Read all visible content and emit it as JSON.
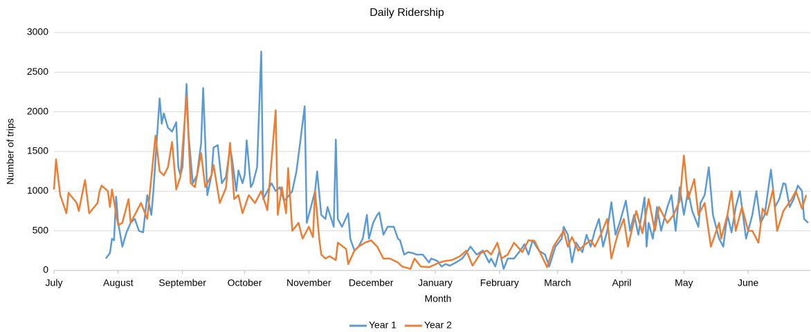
{
  "chart_data": {
    "type": "line",
    "title": "Daily Ridership",
    "x_label": "Month",
    "y_label": "Number of trips",
    "xlim": [
      0,
      365
    ],
    "xticks": [
      {
        "value": 0,
        "label": "July"
      },
      {
        "value": 31,
        "label": "August"
      },
      {
        "value": 62,
        "label": "September"
      },
      {
        "value": 92,
        "label": "October"
      },
      {
        "value": 123,
        "label": "November"
      },
      {
        "value": 153,
        "label": "December"
      },
      {
        "value": 184,
        "label": "January"
      },
      {
        "value": 215,
        "label": "February"
      },
      {
        "value": 243,
        "label": "March"
      },
      {
        "value": 274,
        "label": "April"
      },
      {
        "value": 304,
        "label": "May"
      },
      {
        "value": 335,
        "label": "June"
      }
    ],
    "ylim": [
      0,
      3000
    ],
    "yticks": [
      0,
      500,
      1000,
      1500,
      2000,
      2500,
      3000
    ],
    "grid": true,
    "legend": "bottom",
    "series": [
      {
        "name": "Year 1",
        "color": "#5b9bd5",
        "x": [
          25,
          27,
          28,
          29,
          30,
          31,
          33,
          35,
          37,
          39,
          41,
          43,
          45,
          47,
          48,
          49,
          51,
          52,
          53,
          55,
          57,
          59,
          60,
          61,
          62,
          64,
          65,
          67,
          69,
          71,
          72,
          74,
          76,
          77,
          79,
          81,
          83,
          85,
          86,
          88,
          89,
          91,
          92,
          93,
          95,
          96,
          98,
          100,
          101,
          103,
          105,
          107,
          109,
          111,
          112,
          115,
          117,
          119,
          121,
          122,
          124,
          126,
          127,
          129,
          131,
          132,
          135,
          136,
          137,
          139,
          142,
          143,
          145,
          147,
          149,
          151,
          152,
          154,
          156,
          157,
          159,
          161,
          164,
          166,
          167,
          169,
          171,
          173,
          175,
          178,
          181,
          182,
          185,
          187,
          189,
          191,
          194,
          197,
          199,
          201,
          204,
          207,
          210,
          211,
          213,
          215,
          217,
          219,
          222,
          225,
          227,
          229,
          231,
          234,
          237,
          239,
          242,
          245,
          246,
          248,
          250,
          252,
          255,
          257,
          259,
          261,
          263,
          265,
          267,
          269,
          271,
          273,
          276,
          278,
          280,
          282,
          285,
          286,
          287,
          289,
          291,
          293,
          296,
          298,
          300,
          302,
          304,
          306,
          308,
          311,
          312,
          314,
          316,
          318,
          321,
          323,
          325,
          327,
          329,
          331,
          334,
          337,
          339,
          341,
          343,
          346,
          348,
          350,
          352,
          353,
          355,
          357,
          359,
          361,
          362,
          364
        ],
        "values": [
          150,
          220,
          400,
          380,
          930,
          600,
          300,
          480,
          600,
          650,
          500,
          480,
          950,
          700,
          1000,
          1400,
          2170,
          1850,
          1980,
          1800,
          1750,
          1870,
          1300,
          1200,
          1300,
          2350,
          1700,
          1100,
          1200,
          1600,
          2300,
          950,
          1200,
          1550,
          1580,
          1100,
          1180,
          1550,
          1400,
          1000,
          1260,
          1100,
          1200,
          1640,
          1050,
          1100,
          1300,
          2760,
          900,
          1000,
          1100,
          1000,
          1050,
          880,
          900,
          1000,
          1250,
          1650,
          2070,
          600,
          800,
          1000,
          1250,
          700,
          650,
          800,
          550,
          1650,
          650,
          550,
          720,
          400,
          250,
          300,
          400,
          700,
          400,
          600,
          700,
          730,
          450,
          550,
          550,
          400,
          380,
          200,
          230,
          220,
          200,
          200,
          100,
          150,
          120,
          50,
          80,
          60,
          100,
          150,
          220,
          300,
          200,
          250,
          100,
          150,
          50,
          250,
          20,
          150,
          150,
          250,
          330,
          200,
          380,
          250,
          200,
          50,
          300,
          400,
          550,
          450,
          100,
          350,
          230,
          450,
          300,
          500,
          650,
          300,
          500,
          860,
          450,
          600,
          880,
          500,
          700,
          450,
          920,
          300,
          600,
          400,
          800,
          500,
          800,
          950,
          500,
          1050,
          700,
          1000,
          750,
          550,
          850,
          950,
          1300,
          700,
          400,
          300,
          700,
          480,
          800,
          1000,
          400,
          700,
          1000,
          600,
          700,
          1270,
          800,
          900,
          1100,
          1090,
          800,
          900,
          1070,
          1000,
          650,
          600
        ]
      },
      {
        "name": "Year 2",
        "color": "#ed7d31",
        "x": [
          0,
          1,
          3,
          6,
          7,
          11,
          12,
          15,
          17,
          21,
          22,
          23,
          26,
          27,
          28,
          31,
          33,
          36,
          37,
          42,
          45,
          49,
          51,
          53,
          55,
          57,
          59,
          61,
          64,
          66,
          68,
          71,
          73,
          76,
          77,
          80,
          83,
          85,
          87,
          89,
          91,
          94,
          97,
          100,
          103,
          107,
          108,
          110,
          112,
          113,
          115,
          118,
          120,
          123,
          125,
          126,
          128,
          129,
          131,
          133,
          136,
          137,
          141,
          142,
          145,
          147,
          150,
          153,
          156,
          159,
          162,
          166,
          168,
          172,
          174,
          177,
          181,
          186,
          189,
          192,
          196,
          199,
          202,
          206,
          209,
          211,
          214,
          216,
          219,
          222,
          226,
          229,
          232,
          236,
          238,
          241,
          243,
          246,
          248,
          250,
          253,
          256,
          259,
          261,
          264,
          267,
          269,
          272,
          275,
          277,
          281,
          284,
          287,
          290,
          292,
          296,
          299,
          302,
          304,
          306,
          309,
          311,
          314,
          317,
          321,
          322,
          325,
          327,
          329,
          332,
          335,
          337,
          340,
          342,
          344,
          347,
          349,
          352,
          356,
          358,
          361,
          363
        ],
        "values": [
          1020,
          1400,
          950,
          720,
          980,
          850,
          750,
          1140,
          720,
          850,
          1000,
          1070,
          1000,
          800,
          1020,
          570,
          600,
          900,
          600,
          850,
          650,
          1700,
          1250,
          1200,
          1300,
          1620,
          1020,
          1180,
          2200,
          1100,
          1050,
          1480,
          1050,
          1200,
          1330,
          850,
          1040,
          1610,
          900,
          950,
          720,
          950,
          850,
          1000,
          760,
          2020,
          700,
          1050,
          720,
          1290,
          500,
          600,
          400,
          550,
          420,
          1000,
          400,
          200,
          150,
          180,
          130,
          350,
          270,
          80,
          250,
          300,
          350,
          380,
          300,
          150,
          150,
          100,
          50,
          20,
          150,
          50,
          40,
          100,
          120,
          130,
          180,
          250,
          60,
          220,
          250,
          200,
          350,
          150,
          200,
          350,
          230,
          380,
          370,
          150,
          40,
          300,
          380,
          500,
          300,
          420,
          250,
          320,
          380,
          300,
          460,
          650,
          150,
          450,
          650,
          300,
          750,
          470,
          900,
          500,
          800,
          600,
          700,
          880,
          1450,
          900,
          1150,
          700,
          850,
          300,
          600,
          400,
          700,
          1000,
          500,
          800,
          500,
          500,
          350,
          780,
          700,
          1020,
          500,
          750,
          900,
          1000,
          780,
          950
        ]
      }
    ]
  }
}
